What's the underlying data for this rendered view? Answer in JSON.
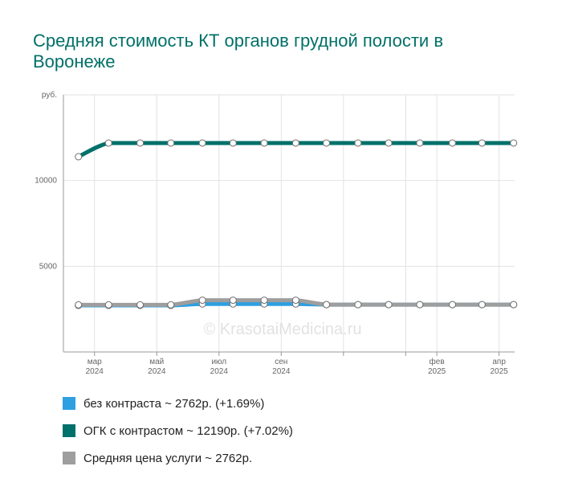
{
  "title": "Средняя стоимость КТ органов грудной полости в Воронеже",
  "watermark": "© KrasotaiMedicina.ru",
  "legend": [
    {
      "label": "без контраста ~ 2762р. (+1.69%)",
      "color": "#2e9fe0"
    },
    {
      "label": "ОГК с контрастом ~ 12190р. (+7.02%)",
      "color": "#00706a"
    },
    {
      "label": "Средняя цена услуги ~ 2762р.",
      "color": "#9e9e9e"
    }
  ],
  "chart_data": {
    "type": "line",
    "title": "Средняя стоимость КТ органов грудной полости в Воронеже",
    "ylabel": "руб.",
    "ylim": [
      0,
      15000
    ],
    "yticks": [
      {
        "value": 5000,
        "label": "5000"
      },
      {
        "value": 10000,
        "label": "10000"
      },
      {
        "value": 15000,
        "label": "руб."
      }
    ],
    "x": [
      "2024-02",
      "2024-03",
      "2024-04",
      "2024-05",
      "2024-06",
      "2024-07",
      "2024-08",
      "2024-09",
      "2024-10",
      "2024-11",
      "2024-12",
      "2025-01",
      "2025-02",
      "2025-03",
      "2025-04"
    ],
    "xticks": [
      {
        "x": "2024-03",
        "label": [
          "мар",
          "2024"
        ]
      },
      {
        "x": "2024-05",
        "label": [
          "май",
          "2024"
        ]
      },
      {
        "x": "2024-07",
        "label": [
          "июл",
          "2024"
        ]
      },
      {
        "x": "2024-09",
        "label": [
          "сен",
          "2024"
        ]
      },
      {
        "x": "2024-11",
        "label": [
          "",
          ""
        ]
      },
      {
        "x": "2025-01",
        "label": [
          "",
          ""
        ]
      },
      {
        "x": "2025-02",
        "label": [
          "фев",
          "2025"
        ]
      },
      {
        "x": "2025-04",
        "label": [
          "апр",
          "2025"
        ]
      }
    ],
    "series": [
      {
        "name": "ОГК с контрастом",
        "color": "#00706a",
        "points": [
          [
            "2024-02-15",
            11390
          ],
          [
            "2024-03-15",
            12190
          ],
          [
            "2024-04-15",
            12190
          ],
          [
            "2024-05-15",
            12190
          ],
          [
            "2024-06-15",
            12190
          ],
          [
            "2024-07-15",
            12190
          ],
          [
            "2024-08-15",
            12190
          ],
          [
            "2024-09-15",
            12190
          ],
          [
            "2024-10-15",
            12190
          ],
          [
            "2024-11-15",
            12190
          ],
          [
            "2024-12-15",
            12190
          ],
          [
            "2025-01-15",
            12190
          ],
          [
            "2025-02-15",
            12190
          ],
          [
            "2025-03-15",
            12190
          ],
          [
            "2025-04-15",
            12190
          ]
        ]
      },
      {
        "name": "без контраста",
        "color": "#2e9fe0",
        "points": [
          [
            "2024-02-15",
            2716
          ],
          [
            "2024-03-15",
            2716
          ],
          [
            "2024-04-15",
            2716
          ],
          [
            "2024-05-15",
            2716
          ],
          [
            "2024-06-15",
            2800
          ],
          [
            "2024-07-15",
            2800
          ],
          [
            "2024-08-15",
            2800
          ],
          [
            "2024-09-15",
            2800
          ],
          [
            "2024-10-15",
            2762
          ],
          [
            "2024-11-15",
            2762
          ],
          [
            "2024-12-15",
            2762
          ],
          [
            "2025-01-15",
            2762
          ],
          [
            "2025-02-15",
            2762
          ],
          [
            "2025-03-15",
            2762
          ],
          [
            "2025-04-15",
            2762
          ]
        ]
      },
      {
        "name": "Средняя цена услуги",
        "color": "#9e9e9e",
        "points": [
          [
            "2024-02-15",
            2750
          ],
          [
            "2024-03-15",
            2750
          ],
          [
            "2024-04-15",
            2750
          ],
          [
            "2024-05-15",
            2750
          ],
          [
            "2024-06-15",
            3020
          ],
          [
            "2024-07-15",
            3020
          ],
          [
            "2024-08-15",
            3020
          ],
          [
            "2024-09-15",
            3020
          ],
          [
            "2024-10-15",
            2762
          ],
          [
            "2024-11-15",
            2762
          ],
          [
            "2024-12-15",
            2762
          ],
          [
            "2025-01-15",
            2762
          ],
          [
            "2025-02-15",
            2762
          ],
          [
            "2025-03-15",
            2762
          ],
          [
            "2025-04-15",
            2762
          ]
        ]
      }
    ],
    "grid": true,
    "legend_position": "bottom-left"
  }
}
